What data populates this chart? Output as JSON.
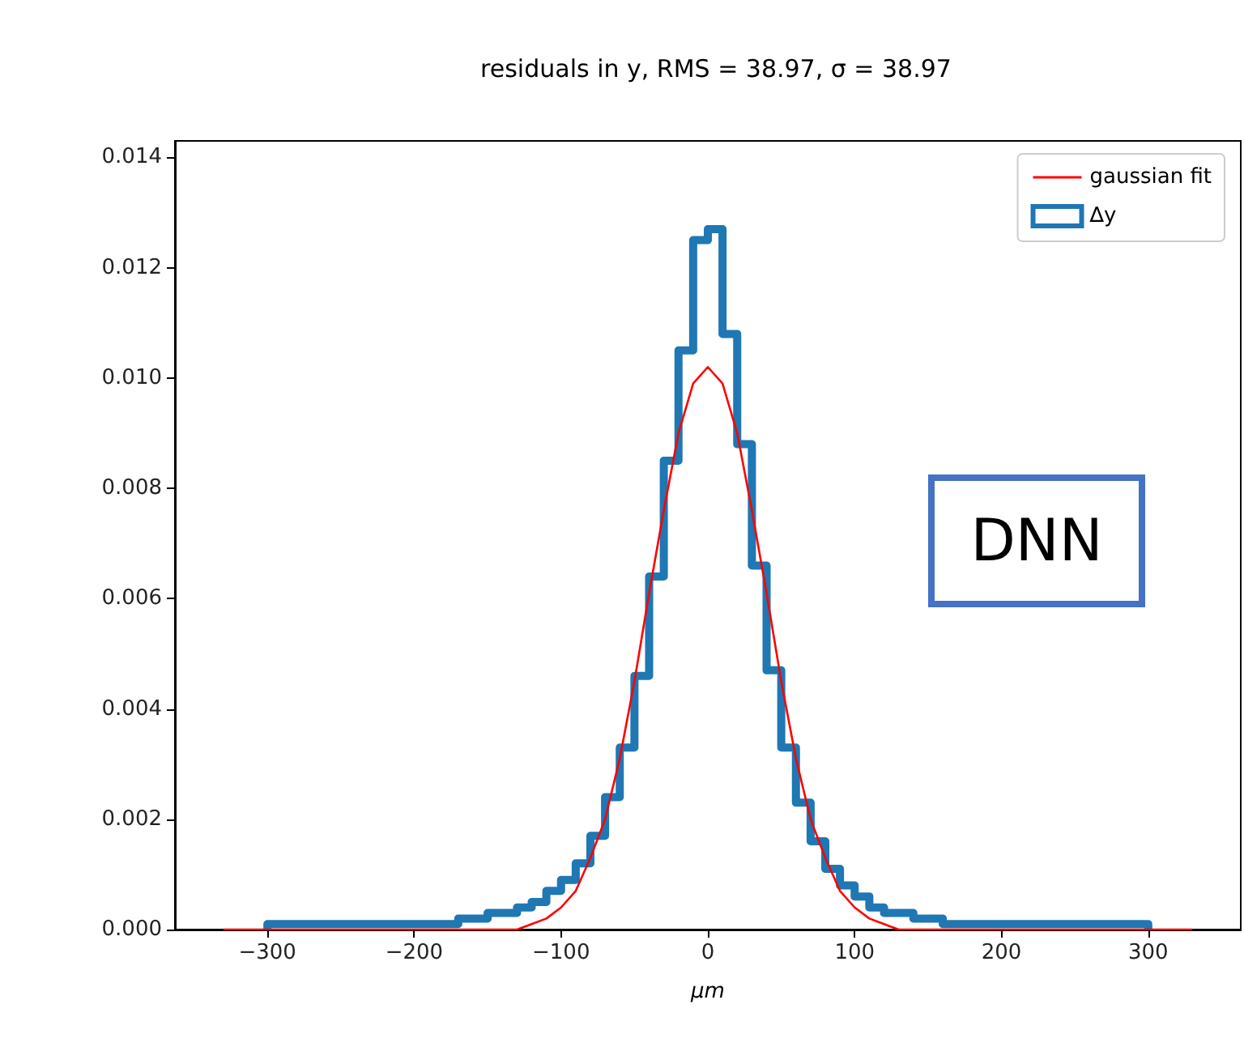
{
  "chart_data": {
    "type": "histogram",
    "title": "residuals in y, RMS = 38.97, σ = 38.97",
    "xlabel": "μm",
    "xlim": [
      -363,
      363
    ],
    "ylim": [
      0,
      0.0143
    ],
    "xticks": [
      {
        "value": -300,
        "label": "−300"
      },
      {
        "value": -200,
        "label": "−200"
      },
      {
        "value": -100,
        "label": "−100"
      },
      0,
      100,
      200,
      300
    ],
    "yticks": [
      {
        "value": 0,
        "label": "0.000"
      },
      {
        "value": 0.002,
        "label": "0.002"
      },
      {
        "value": 0.004,
        "label": "0.004"
      },
      {
        "value": 0.006,
        "label": "0.006"
      },
      {
        "value": 0.008,
        "label": "0.008"
      },
      {
        "value": 0.01,
        "label": "0.010"
      },
      {
        "value": 0.012,
        "label": "0.012"
      },
      {
        "value": 0.014,
        "label": "0.014"
      }
    ],
    "legend": "top right",
    "annotations": [
      "DNN"
    ],
    "series": [
      {
        "name": "gaussian fit",
        "type": "line",
        "color": "#ff0000",
        "x": [
          -330,
          -300,
          -250,
          -200,
          -150,
          -140,
          -130,
          -120,
          -110,
          -100,
          -90,
          -80,
          -70,
          -60,
          -50,
          -40,
          -30,
          -20,
          -10,
          0,
          10,
          20,
          30,
          40,
          50,
          60,
          70,
          80,
          90,
          100,
          110,
          120,
          130,
          140,
          150,
          200,
          250,
          300,
          330
        ],
        "values": [
          0,
          0,
          0,
          0,
          0,
          0,
          0,
          0.0001,
          0.0002,
          0.0004,
          0.0007,
          0.0013,
          0.002,
          0.0031,
          0.0045,
          0.0061,
          0.0076,
          0.009,
          0.0099,
          0.0102,
          0.0099,
          0.009,
          0.0076,
          0.0061,
          0.0045,
          0.0031,
          0.002,
          0.0013,
          0.0007,
          0.0004,
          0.0002,
          0.0001,
          0,
          0,
          0,
          0,
          0,
          0,
          0
        ]
      },
      {
        "name": "∆y",
        "color": "#1f77b4",
        "bins": [
          -300,
          -290,
          -280,
          -270,
          -260,
          -250,
          -240,
          -230,
          -220,
          -210,
          -200,
          -190,
          -180,
          -170,
          -160,
          -150,
          -140,
          -130,
          -120,
          -110,
          -100,
          -90,
          -80,
          -70,
          -60,
          -50,
          -40,
          -30,
          -20,
          -10,
          0,
          10,
          20,
          30,
          40,
          50,
          60,
          70,
          80,
          90,
          100,
          110,
          120,
          130,
          140,
          150,
          160,
          170,
          180,
          190,
          200,
          210,
          220,
          230,
          240,
          250,
          260,
          270,
          280,
          290,
          300
        ],
        "values": [
          0.0001,
          0.0001,
          0.0001,
          0.0001,
          0.0001,
          0.0001,
          0.0001,
          0.0001,
          0.0001,
          0.0001,
          0.0001,
          0.0001,
          0.0001,
          0.0002,
          0.0002,
          0.0003,
          0.0003,
          0.0004,
          0.0005,
          0.0007,
          0.0009,
          0.0012,
          0.0017,
          0.0024,
          0.0033,
          0.0046,
          0.0064,
          0.0085,
          0.0105,
          0.0125,
          0.0127,
          0.0108,
          0.0088,
          0.0066,
          0.0047,
          0.0033,
          0.0023,
          0.0016,
          0.0011,
          0.0008,
          0.0006,
          0.0004,
          0.0003,
          0.0003,
          0.0002,
          0.0002,
          0.0001,
          0.0001,
          0.0001,
          0.0001,
          0.0001,
          0.0001,
          0.0001,
          0.0001,
          0.0001,
          0.0001,
          0.0001,
          0.0001,
          0.0001,
          0.0001
        ]
      }
    ]
  }
}
